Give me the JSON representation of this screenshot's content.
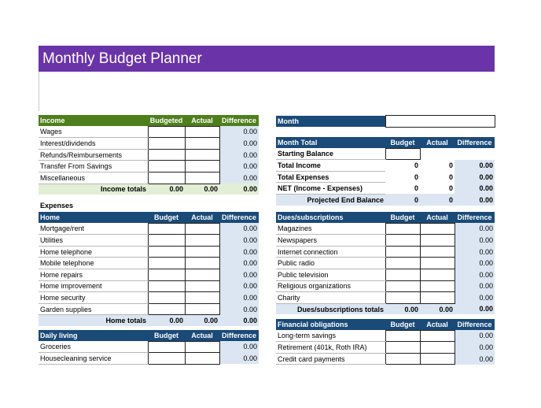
{
  "title": "Monthly Budget Planner",
  "cols": {
    "budgeted": "Budgeted",
    "budget": "Budget",
    "actual": "Actual",
    "difference": "Difference"
  },
  "income": {
    "header": "Income",
    "rows": [
      {
        "label": "Wages",
        "diff": "0.00"
      },
      {
        "label": "Interest/dividends",
        "diff": "0.00"
      },
      {
        "label": "Refunds/Reimbursements",
        "diff": "0.00"
      },
      {
        "label": "Transfer From Savings",
        "diff": "0.00"
      },
      {
        "label": "Miscellaneous",
        "diff": "0.00"
      }
    ],
    "total": {
      "label": "Income totals",
      "budgeted": "0.00",
      "actual": "0.00",
      "diff": "0.00"
    }
  },
  "expenses_label": "Expenses",
  "home": {
    "header": "Home",
    "rows": [
      {
        "label": "Mortgage/rent",
        "diff": "0.00"
      },
      {
        "label": "Utilities",
        "diff": "0.00"
      },
      {
        "label": "Home telephone",
        "diff": "0.00"
      },
      {
        "label": "Mobile telephone",
        "diff": "0.00"
      },
      {
        "label": "Home repairs",
        "diff": "0.00"
      },
      {
        "label": "Home improvement",
        "diff": "0.00"
      },
      {
        "label": "Home security",
        "diff": "0.00"
      },
      {
        "label": "Garden supplies",
        "diff": "0.00"
      }
    ],
    "total": {
      "label": "Home totals",
      "budgeted": "0.00",
      "actual": "0.00",
      "diff": "0.00"
    }
  },
  "daily": {
    "header": "Daily living",
    "rows": [
      {
        "label": "Groceries",
        "diff": "0.00"
      },
      {
        "label": "Housecleaning service",
        "diff": "0.00"
      }
    ]
  },
  "month": {
    "label": "Month",
    "value": ""
  },
  "month_total": {
    "header": "Month Total",
    "starting_balance": "Starting Balance",
    "rows": [
      {
        "label": "Total Income",
        "budget": "0",
        "actual": "0",
        "diff": "0.00"
      },
      {
        "label": "Total Expenses",
        "budget": "0",
        "actual": "0",
        "diff": "0.00"
      },
      {
        "label": "NET (Income - Expenses)",
        "budget": "0",
        "actual": "0",
        "diff": "0.00"
      }
    ],
    "projected": {
      "label": "Projected End Balance",
      "budget": "0",
      "actual": "0",
      "diff": "0.00"
    }
  },
  "dues": {
    "header": "Dues/subscriptions",
    "rows": [
      {
        "label": "Magazines",
        "diff": "0.00"
      },
      {
        "label": "Newspapers",
        "diff": "0.00"
      },
      {
        "label": "Internet connection",
        "diff": "0.00"
      },
      {
        "label": "Public radio",
        "diff": "0.00"
      },
      {
        "label": "Public television",
        "diff": "0.00"
      },
      {
        "label": "Religious organizations",
        "diff": "0.00"
      },
      {
        "label": "Charity",
        "diff": "0.00"
      }
    ],
    "total": {
      "label": "Dues/subscriptions totals",
      "budget": "0.00",
      "actual": "0.00",
      "diff": "0.00"
    }
  },
  "financial": {
    "header": "Financial obligations",
    "rows": [
      {
        "label": "Long-term savings",
        "diff": "0.00"
      },
      {
        "label": "Retirement (401k, Roth IRA)",
        "diff": "0.00"
      },
      {
        "label": "Credit card payments",
        "diff": "0.00"
      }
    ]
  },
  "colors": {
    "title_bg": "#6a34a8",
    "income_header": "#4e7f1c",
    "section_header": "#1a4a78",
    "diff_fill": "#dbe6f2",
    "income_total_fill": "#e2efd6"
  }
}
